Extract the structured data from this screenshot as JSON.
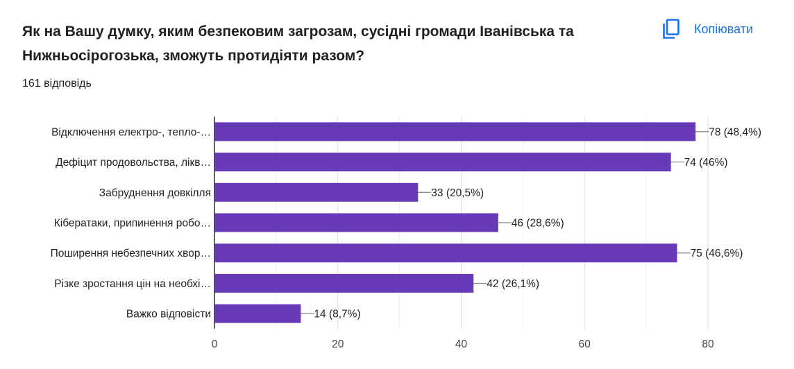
{
  "question": {
    "title": "Як на Вашу думку, яким безпековим загрозам, сусідні громади Іванівська та Нижньосірогозька, зможуть протидіяти разом?",
    "responses": "161 відповідь"
  },
  "toolbar": {
    "copy_label": "Копіювати",
    "copy_icon": "copy-icon"
  },
  "colors": {
    "bar": "#673ab7",
    "accent": "#1a73e8",
    "grid": "#e8e8e8",
    "axis": "#333333"
  },
  "chart_data": {
    "type": "bar",
    "orientation": "horizontal",
    "categories": [
      "Відключення електро-, тепло-…",
      "Дефіцит продовольства, лікв…",
      "Забруднення довкілля",
      "Кібератаки, припинення робо…",
      "Поширення небезпечних хвор…",
      "Різке зростання цін на необхі…",
      "Важко відповісти"
    ],
    "values": [
      78,
      74,
      33,
      46,
      75,
      42,
      14
    ],
    "value_labels": [
      "78 (48,4%)",
      "74 (46%)",
      "33 (20,5%)",
      "46 (28,6%)",
      "75 (46,6%)",
      "42 (26,1%)",
      "14 (8,7%)"
    ],
    "xlim": [
      0,
      80
    ],
    "xticks": [
      0,
      20,
      40,
      60,
      80
    ],
    "grid": true,
    "xlabel": "",
    "ylabel": ""
  }
}
